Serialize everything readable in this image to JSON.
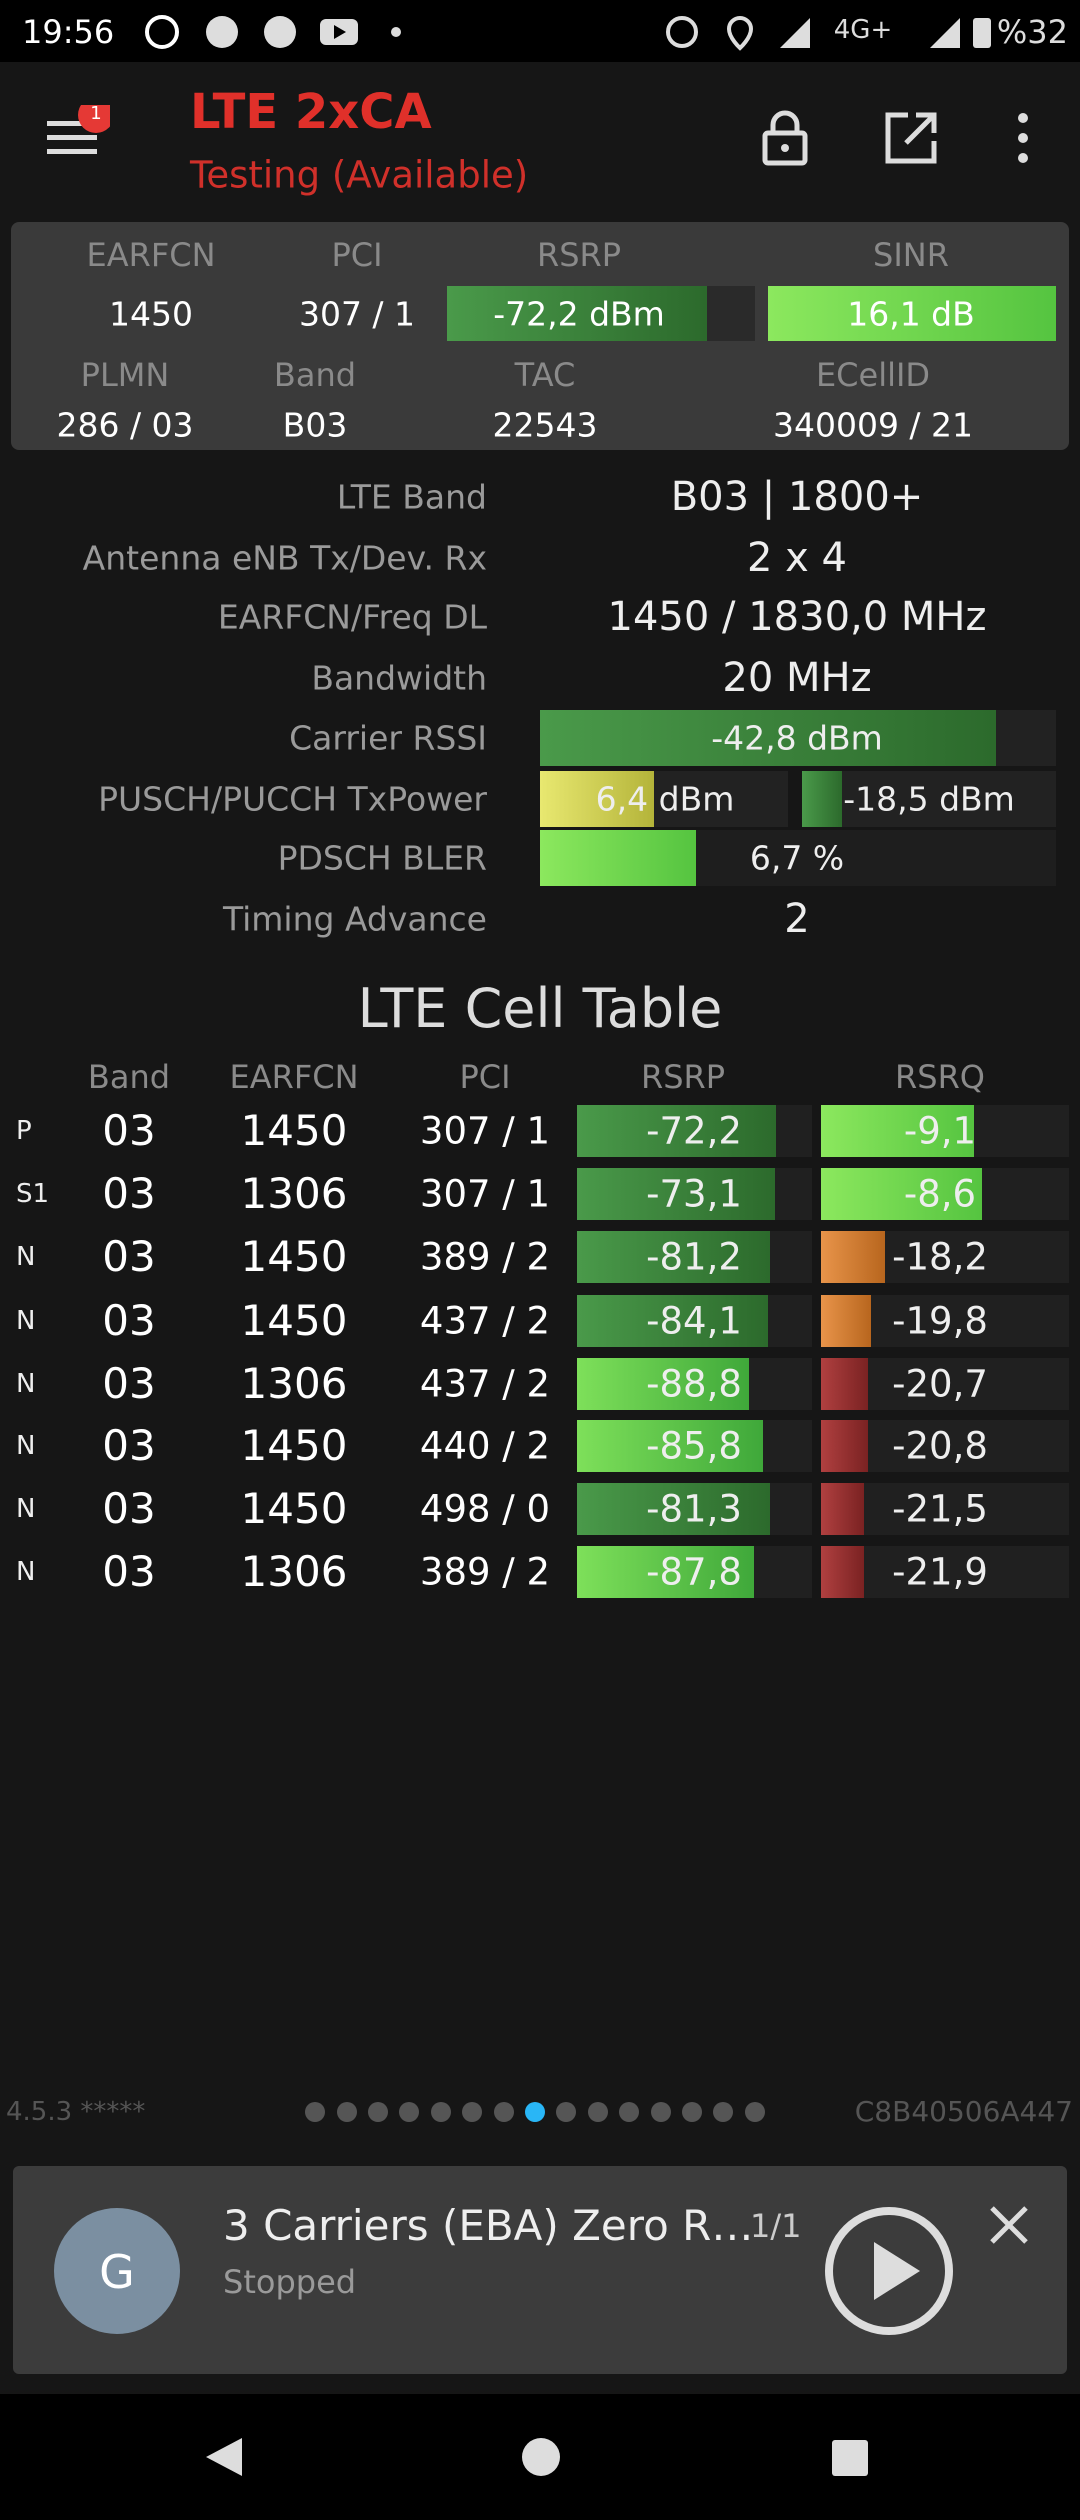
{
  "status_bar": {
    "time": "19:56",
    "network": "4G+",
    "battery": "%32"
  },
  "app_bar": {
    "badge": "1",
    "title": "LTE 2xCA",
    "subtitle": "Testing (Available)"
  },
  "summary": {
    "headers1": [
      "EARFCN",
      "PCI",
      "RSRP",
      "SINR"
    ],
    "row1": [
      "1450",
      "307 / 1",
      "-72,2 dBm",
      "16,1 dB"
    ],
    "headers2": [
      "PLMN",
      "Band",
      "TAC",
      "ECellID"
    ],
    "row2": [
      "286 / 03",
      "B03",
      "22543",
      "340009 / 21"
    ]
  },
  "details": [
    {
      "label": "LTE Band",
      "value": "B03 | 1800+"
    },
    {
      "label": "Antenna eNB Tx/Dev. Rx",
      "value": "2 x 4"
    },
    {
      "label": "EARFCN/Freq DL",
      "value": "1450 / 1830,0 MHz"
    },
    {
      "label": "Bandwidth",
      "value": "20 MHz"
    },
    {
      "label": "Carrier RSSI",
      "value": "-42,8 dBm"
    },
    {
      "label": "PUSCH/PUCCH TxPower",
      "value": "6,4 dBm",
      "value2": "-18,5 dBm"
    },
    {
      "label": "PDSCH BLER",
      "value": "6,7 %"
    },
    {
      "label": "Timing Advance",
      "value": "2"
    }
  ],
  "cell_table": {
    "title": "LTE Cell Table",
    "columns": [
      "Band",
      "EARFCN",
      "PCI",
      "RSRP",
      "RSRQ"
    ],
    "rows": [
      [
        "P",
        "03",
        "1450",
        "307 / 1",
        "-72,2",
        "-9,1"
      ],
      [
        "S1",
        "03",
        "1306",
        "307 / 1",
        "-73,1",
        "-8,6"
      ],
      [
        "N",
        "03",
        "1450",
        "389 / 2",
        "-81,2",
        "-18,2"
      ],
      [
        "N",
        "03",
        "1450",
        "437 / 2",
        "-84,1",
        "-19,8"
      ],
      [
        "N",
        "03",
        "1306",
        "437 / 2",
        "-88,8",
        "-20,7"
      ],
      [
        "N",
        "03",
        "1450",
        "440 / 2",
        "-85,8",
        "-20,8"
      ],
      [
        "N",
        "03",
        "1450",
        "498 / 0",
        "-81,3",
        "-21,5"
      ],
      [
        "N",
        "03",
        "1306",
        "389 / 2",
        "-87,8",
        "-21,9"
      ]
    ]
  },
  "footer": {
    "version": "4.5.3 *****",
    "device_id": "C8B40506A447"
  },
  "player": {
    "avatar": "G",
    "title": "3 Carriers (EBA) Zero R…",
    "count": "1/1",
    "status": "Stopped"
  }
}
